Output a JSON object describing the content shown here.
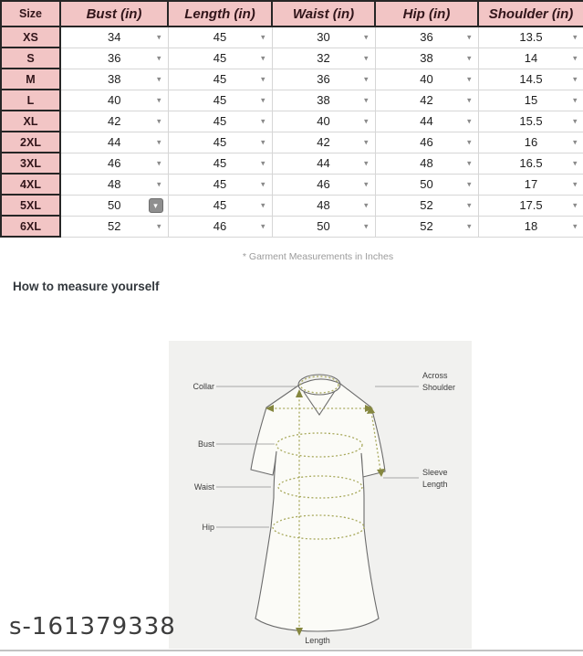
{
  "table": {
    "columns": [
      "Size",
      "Bust (in)",
      "Length (in)",
      "Waist (in)",
      "Hip (in)",
      "Shoulder (in)"
    ],
    "rows": [
      {
        "size": "XS",
        "values": [
          "34",
          "45",
          "30",
          "36",
          "13.5"
        ]
      },
      {
        "size": "S",
        "values": [
          "36",
          "45",
          "32",
          "38",
          "14"
        ]
      },
      {
        "size": "M",
        "values": [
          "38",
          "45",
          "36",
          "40",
          "14.5"
        ]
      },
      {
        "size": "L",
        "values": [
          "40",
          "45",
          "38",
          "42",
          "15"
        ]
      },
      {
        "size": "XL",
        "values": [
          "42",
          "45",
          "40",
          "44",
          "15.5"
        ]
      },
      {
        "size": "2XL",
        "values": [
          "44",
          "45",
          "42",
          "46",
          "16"
        ]
      },
      {
        "size": "3XL",
        "values": [
          "46",
          "45",
          "44",
          "48",
          "16.5"
        ]
      },
      {
        "size": "4XL",
        "values": [
          "48",
          "45",
          "46",
          "50",
          "17"
        ]
      },
      {
        "size": "5XL",
        "values": [
          "50",
          "45",
          "48",
          "52",
          "17.5"
        ]
      },
      {
        "size": "6XL",
        "values": [
          "52",
          "46",
          "50",
          "52",
          "18"
        ]
      }
    ],
    "active_cell": {
      "row": 8,
      "col": 0
    },
    "footnote": "* Garment Measurements in Inches"
  },
  "section": {
    "heading": "How to measure yourself"
  },
  "diagram": {
    "labels": {
      "collar": "Collar",
      "bust": "Bust",
      "waist": "Waist",
      "hip": "Hip",
      "across_shoulder_line1": "Across",
      "across_shoulder_line2": "Shoulder",
      "sleeve_length_line1": "Sleeve",
      "sleeve_length_line2": "Length",
      "length": "Length"
    }
  },
  "watermark": "s-161379338",
  "colors": {
    "header_pink": "#f2c5c5",
    "measure_line_olive": "#a9aa5e",
    "panel_bg": "#f1f1ef",
    "active_dropdown_gray": "#8f8f8f"
  }
}
